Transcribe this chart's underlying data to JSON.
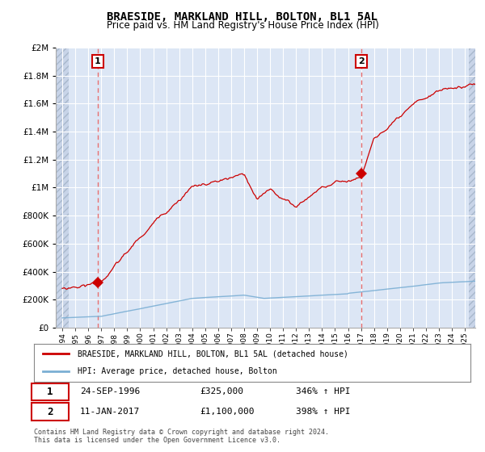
{
  "title": "BRAESIDE, MARKLAND HILL, BOLTON, BL1 5AL",
  "subtitle": "Price paid vs. HM Land Registry's House Price Index (HPI)",
  "ylim": [
    0,
    2000000
  ],
  "yticks": [
    0,
    200000,
    400000,
    600000,
    800000,
    1000000,
    1200000,
    1400000,
    1600000,
    1800000,
    2000000
  ],
  "background_color": "#ffffff",
  "plot_bg_color": "#dce6f5",
  "grid_color": "#ffffff",
  "annotation1": {
    "label": "1",
    "date": "24-SEP-1996",
    "price": 325000,
    "pct": "346% ↑ HPI",
    "x": 1996.73
  },
  "annotation2": {
    "label": "2",
    "date": "11-JAN-2017",
    "price": 1100000,
    "pct": "398% ↑ HPI",
    "x": 2017.03
  },
  "legend_line1": "BRAESIDE, MARKLAND HILL, BOLTON, BL1 5AL (detached house)",
  "legend_line2": "HPI: Average price, detached house, Bolton",
  "footer": "Contains HM Land Registry data © Crown copyright and database right 2024.\nThis data is licensed under the Open Government Licence v3.0.",
  "hpi_color": "#7bafd4",
  "price_color": "#cc0000",
  "dashed_line_color": "#e87070",
  "hatch_color": "#c8d4e8"
}
